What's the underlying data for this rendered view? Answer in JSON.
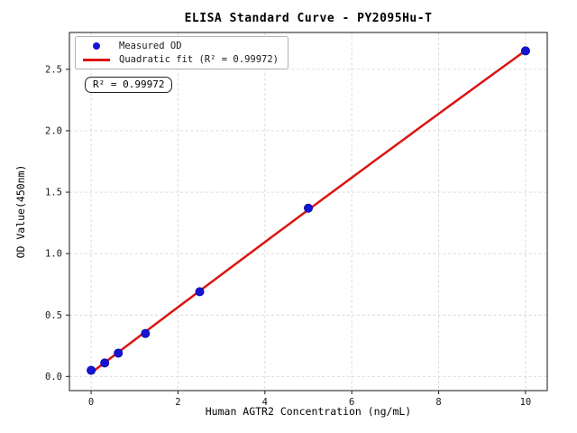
{
  "title": "ELISA Standard Curve - PY2095Hu-T",
  "chart_data": {
    "type": "scatter",
    "title": "ELISA Standard Curve - PY2095Hu-T",
    "xlabel": "Human AGTR2 Concentration (ng/mL)",
    "ylabel": "OD Value(450nm)",
    "xlim": [
      -0.5,
      10.5
    ],
    "ylim": [
      -0.115,
      2.8
    ],
    "xticks": [
      0,
      2,
      4,
      6,
      8,
      10
    ],
    "xticklabels": [
      "0",
      "2",
      "4",
      "6",
      "8",
      "10"
    ],
    "yticks": [
      0.0,
      0.5,
      1.0,
      1.5,
      2.0,
      2.5
    ],
    "yticklabels": [
      "0.0",
      "0.5",
      "1.0",
      "1.5",
      "2.0",
      "2.5"
    ],
    "grid": true,
    "grid_style": "dashed",
    "legend_position": "upper-left",
    "series": [
      {
        "name": "Measured OD",
        "type": "scatter",
        "color": "#1414d2",
        "edge_color": "#0a0aa6",
        "x": [
          0,
          0.3125,
          0.625,
          1.25,
          2.5,
          5,
          10
        ],
        "y": [
          0.05,
          0.11,
          0.19,
          0.35,
          0.69,
          1.37,
          2.65
        ]
      },
      {
        "name": "Quadratic fit (R² = 0.99972)",
        "type": "line",
        "fit": "quadratic",
        "color": "#dc1414",
        "x_range": [
          0,
          10
        ],
        "r_squared": 0.99972
      }
    ],
    "annotation": "R² = 0.99972"
  },
  "legend": {
    "items": [
      {
        "label": "Measured OD",
        "marker": "dot",
        "color": "#1414d2"
      },
      {
        "label": "Quadratic fit (R² = 0.99972)",
        "marker": "line",
        "color": "#dc1414"
      }
    ]
  },
  "annotation_text": "R² = 0.99972",
  "colors": {
    "points": "#1414d2",
    "fit_line": "#dc1414",
    "grid": "#d6d6d6",
    "spine": "#2b2b2b",
    "tick_label": "#1a1a1a",
    "background": "#ffffff"
  }
}
